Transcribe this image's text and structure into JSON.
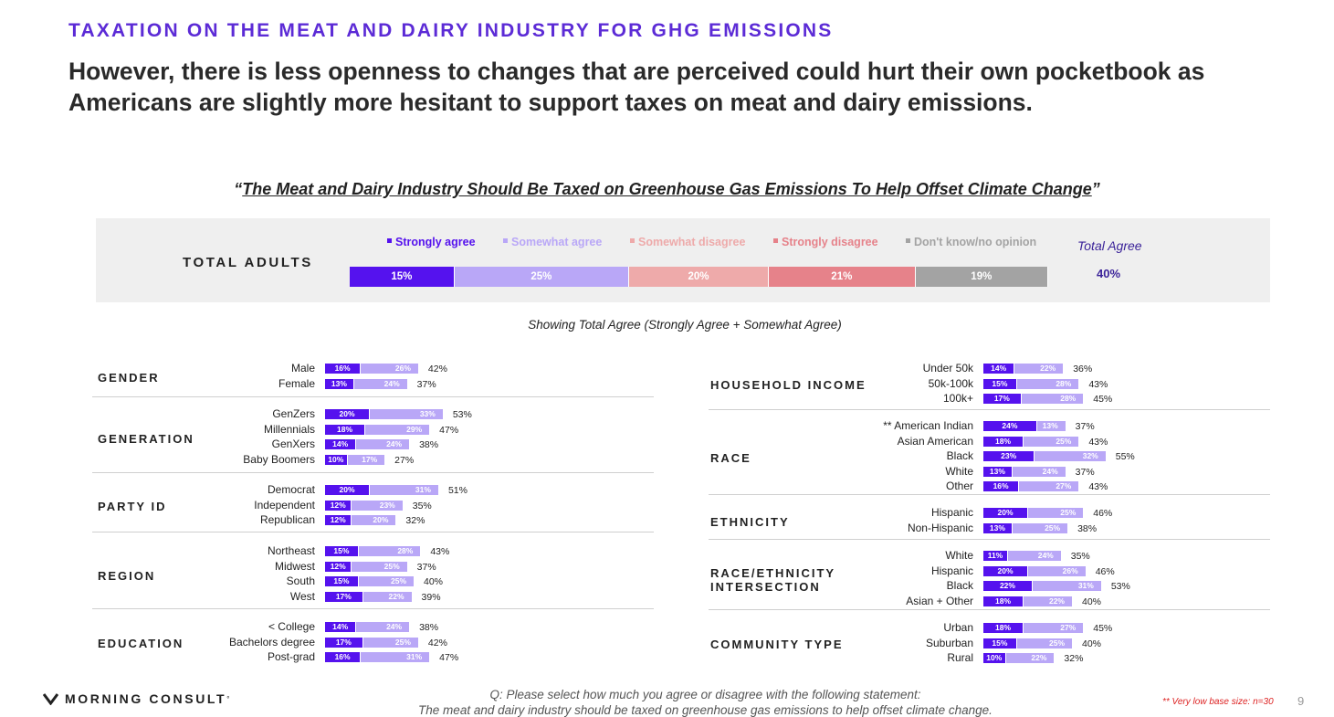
{
  "kicker": "TAXATION ON THE MEAT AND DAIRY INDUSTRY FOR GHG EMISSIONS",
  "headline": "However, there is less openness to changes that are perceived could hurt their own pocketbook as Americans are slightly more hesitant to support taxes on meat and dairy emissions.",
  "quote_open": "“",
  "quote_text": "The Meat and Dairy Industry Should Be Taxed on Greenhouse Gas Emissions To Help Offset Climate Change",
  "quote_close": "”",
  "total_adults": {
    "label": "TOTAL ADULTS",
    "legend": [
      {
        "label": "Strongly agree",
        "color": "#5512ee"
      },
      {
        "label": "Somewhat agree",
        "color": "#b9a7f7"
      },
      {
        "label": "Somewhat disagree",
        "color": "#eeaaaa"
      },
      {
        "label": "Strongly disagree",
        "color": "#e6828a"
      },
      {
        "label": "Don't know/no opinion",
        "color": "#a3a3a3"
      }
    ],
    "values": [
      15,
      25,
      20,
      21,
      19
    ],
    "value_labels": [
      "15%",
      "25%",
      "20%",
      "21%",
      "19%"
    ],
    "total_agree_title": "Total Agree",
    "total_agree_value": "40%"
  },
  "subnote": "Showing Total Agree (Strongly Agree + Somewhat Agree)",
  "chart_data": {
    "type": "bar",
    "stacked": true,
    "orientation": "horizontal",
    "series_names": [
      "Strongly agree",
      "Somewhat agree"
    ],
    "groups": [
      {
        "name": "GENDER",
        "rows": [
          {
            "label": "Male",
            "strong": 16,
            "somewhat": 26,
            "total": 42
          },
          {
            "label": "Female",
            "strong": 13,
            "somewhat": 24,
            "total": 37
          }
        ]
      },
      {
        "name": "GENERATION",
        "rows": [
          {
            "label": "GenZers",
            "strong": 20,
            "somewhat": 33,
            "total": 53
          },
          {
            "label": "Millennials",
            "strong": 18,
            "somewhat": 29,
            "total": 47
          },
          {
            "label": "GenXers",
            "strong": 14,
            "somewhat": 24,
            "total": 38
          },
          {
            "label": "Baby Boomers",
            "strong": 10,
            "somewhat": 17,
            "total": 27
          }
        ]
      },
      {
        "name": "PARTY ID",
        "rows": [
          {
            "label": "Democrat",
            "strong": 20,
            "somewhat": 31,
            "total": 51
          },
          {
            "label": "Independent",
            "strong": 12,
            "somewhat": 23,
            "total": 35
          },
          {
            "label": "Republican",
            "strong": 12,
            "somewhat": 20,
            "total": 32
          }
        ]
      },
      {
        "name": "REGION",
        "rows": [
          {
            "label": "Northeast",
            "strong": 15,
            "somewhat": 28,
            "total": 43
          },
          {
            "label": "Midwest",
            "strong": 12,
            "somewhat": 25,
            "total": 37
          },
          {
            "label": "South",
            "strong": 15,
            "somewhat": 25,
            "total": 40
          },
          {
            "label": "West",
            "strong": 17,
            "somewhat": 22,
            "total": 39
          }
        ]
      },
      {
        "name": "EDUCATION",
        "rows": [
          {
            "label": "< College",
            "strong": 14,
            "somewhat": 24,
            "total": 38
          },
          {
            "label": "Bachelors degree",
            "strong": 17,
            "somewhat": 25,
            "total": 42
          },
          {
            "label": "Post-grad",
            "strong": 16,
            "somewhat": 31,
            "total": 47
          }
        ]
      },
      {
        "name": "HOUSEHOLD INCOME",
        "rows": [
          {
            "label": "Under 50k",
            "strong": 14,
            "somewhat": 22,
            "total": 36
          },
          {
            "label": "50k-100k",
            "strong": 15,
            "somewhat": 28,
            "total": 43
          },
          {
            "label": "100k+",
            "strong": 17,
            "somewhat": 28,
            "total": 45
          }
        ]
      },
      {
        "name": "RACE",
        "rows": [
          {
            "label": "American Indian",
            "prefix": "**",
            "strong": 24,
            "somewhat": 13,
            "total": 37
          },
          {
            "label": "Asian American",
            "strong": 18,
            "somewhat": 25,
            "total": 43
          },
          {
            "label": "Black",
            "strong": 23,
            "somewhat": 32,
            "total": 55
          },
          {
            "label": "White",
            "strong": 13,
            "somewhat": 24,
            "total": 37
          },
          {
            "label": "Other",
            "strong": 16,
            "somewhat": 27,
            "total": 43
          }
        ]
      },
      {
        "name": "ETHNICITY",
        "rows": [
          {
            "label": "Hispanic",
            "strong": 20,
            "somewhat": 25,
            "total": 46
          },
          {
            "label": "Non-Hispanic",
            "strong": 13,
            "somewhat": 25,
            "total": 38
          }
        ]
      },
      {
        "name": "RACE/ETHNICITY\nINTERSECTION",
        "rows": [
          {
            "label": "White",
            "strong": 11,
            "somewhat": 24,
            "total": 35
          },
          {
            "label": "Hispanic",
            "strong": 20,
            "somewhat": 26,
            "total": 46
          },
          {
            "label": "Black",
            "strong": 22,
            "somewhat": 31,
            "total": 53
          },
          {
            "label": "Asian + Other",
            "strong": 18,
            "somewhat": 22,
            "total": 40
          }
        ]
      },
      {
        "name": "COMMUNITY TYPE",
        "rows": [
          {
            "label": "Urban",
            "strong": 18,
            "somewhat": 27,
            "total": 45
          },
          {
            "label": "Suburban",
            "strong": 15,
            "somewhat": 25,
            "total": 40
          },
          {
            "label": "Rural",
            "strong": 10,
            "somewhat": 22,
            "total": 32
          }
        ]
      }
    ]
  },
  "footer": {
    "logo_text": "MORNING CONSULT",
    "logo_mark": "°",
    "question_line1": "Q:  Please select how much you agree or disagree with the following statement:",
    "question_line2": "The meat and dairy industry should be taxed on greenhouse gas emissions to help offset climate change.",
    "low_base_note": "** Very low base size: n=30",
    "page_number": "9"
  }
}
